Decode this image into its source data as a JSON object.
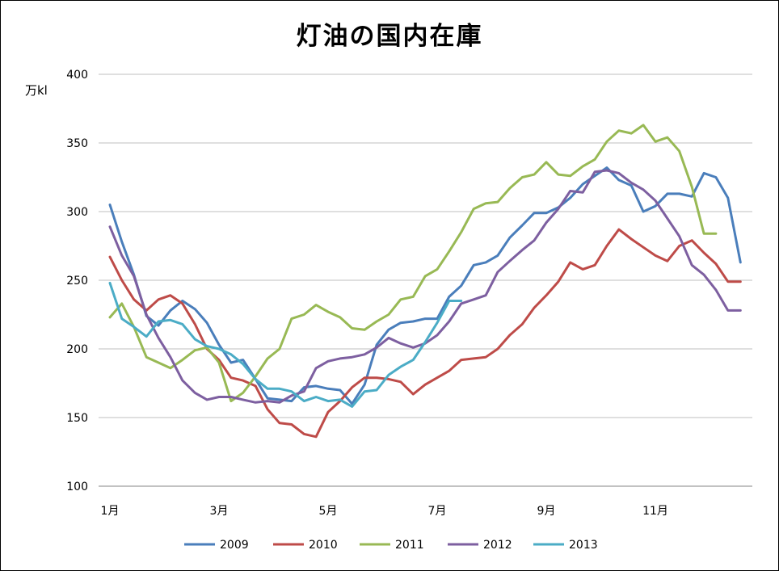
{
  "chart_data": {
    "type": "line",
    "title": "灯油の国内在庫",
    "ylabel": "万kl",
    "xlabel": "",
    "ylim": [
      100,
      400
    ],
    "yticks": [
      100,
      150,
      200,
      250,
      300,
      350,
      400
    ],
    "xlim": [
      1,
      12.67
    ],
    "xtick_values": [
      1,
      3,
      5,
      7,
      9,
      11
    ],
    "xtick_labels": [
      "1月",
      "3月",
      "5月",
      "7月",
      "9月",
      "11月"
    ],
    "grid": "horizontal",
    "legend_position": "bottom",
    "series": [
      {
        "name": "2009",
        "color": "#4A7EBB",
        "x": [
          1.0,
          1.22,
          1.44,
          1.67,
          1.89,
          2.11,
          2.33,
          2.56,
          2.78,
          3.0,
          3.22,
          3.44,
          3.67,
          3.89,
          4.11,
          4.33,
          4.56,
          4.78,
          5.0,
          5.22,
          5.44,
          5.67,
          5.89,
          6.11,
          6.33,
          6.56,
          6.78,
          7.0,
          7.22,
          7.44,
          7.67,
          7.89,
          8.11,
          8.33,
          8.56,
          8.78,
          9.0,
          9.22,
          9.44,
          9.67,
          9.89,
          10.11,
          10.33,
          10.56,
          10.78,
          11.0,
          11.22,
          11.44,
          11.67,
          11.89,
          12.11,
          12.33,
          12.56
        ],
        "values": [
          305,
          278,
          254,
          224,
          217,
          228,
          235,
          229,
          219,
          203,
          190,
          192,
          178,
          164,
          163,
          162,
          172,
          173,
          171,
          170,
          160,
          174,
          203,
          214,
          219,
          220,
          222,
          222,
          238,
          246,
          261,
          263,
          268,
          281,
          290,
          299,
          299,
          303,
          310,
          320,
          326,
          332,
          323,
          319,
          300,
          304,
          313,
          313,
          311,
          328,
          325,
          310,
          263
        ]
      },
      {
        "name": "2010",
        "color": "#BE4B48",
        "x": [
          1.0,
          1.22,
          1.44,
          1.67,
          1.89,
          2.11,
          2.33,
          2.56,
          2.78,
          3.0,
          3.22,
          3.44,
          3.67,
          3.89,
          4.11,
          4.33,
          4.56,
          4.78,
          5.0,
          5.22,
          5.44,
          5.67,
          5.89,
          6.11,
          6.33,
          6.56,
          6.78,
          7.0,
          7.22,
          7.44,
          7.67,
          7.89,
          8.11,
          8.33,
          8.56,
          8.78,
          9.0,
          9.22,
          9.44,
          9.67,
          9.89,
          10.11,
          10.33,
          10.56,
          10.78,
          11.0,
          11.22,
          11.44,
          11.67,
          11.89,
          12.11,
          12.33,
          12.56
        ],
        "values": [
          267,
          250,
          236,
          228,
          236,
          239,
          233,
          218,
          200,
          192,
          179,
          177,
          173,
          156,
          146,
          145,
          138,
          136,
          154,
          162,
          172,
          179,
          179,
          178,
          176,
          167,
          174,
          179,
          184,
          192,
          193,
          194,
          200,
          210,
          218,
          230,
          239,
          249,
          263,
          258,
          261,
          275,
          287,
          280,
          274,
          268,
          264,
          275,
          279,
          270,
          262,
          249,
          249
        ]
      },
      {
        "name": "2011",
        "color": "#98B954",
        "x": [
          1.0,
          1.22,
          1.44,
          1.67,
          1.89,
          2.11,
          2.33,
          2.56,
          2.78,
          3.0,
          3.22,
          3.44,
          3.67,
          3.89,
          4.11,
          4.33,
          4.56,
          4.78,
          5.0,
          5.22,
          5.44,
          5.67,
          5.89,
          6.11,
          6.33,
          6.56,
          6.78,
          7.0,
          7.22,
          7.44,
          7.67,
          7.89,
          8.11,
          8.33,
          8.56,
          8.78,
          9.0,
          9.22,
          9.44,
          9.67,
          9.89,
          10.11,
          10.33,
          10.56,
          10.78,
          11.0,
          11.22,
          11.44,
          11.67,
          11.89,
          12.11
        ],
        "values": [
          223,
          233,
          216,
          194,
          190,
          186,
          192,
          199,
          201,
          190,
          162,
          168,
          180,
          193,
          200,
          222,
          225,
          232,
          227,
          223,
          215,
          214,
          220,
          225,
          236,
          238,
          253,
          258,
          271,
          285,
          302,
          306,
          307,
          317,
          325,
          327,
          336,
          327,
          326,
          333,
          338,
          351,
          359,
          357,
          363,
          351,
          354,
          344,
          318,
          284,
          284
        ]
      },
      {
        "name": "2012",
        "color": "#7D5FA0",
        "x": [
          1.0,
          1.22,
          1.44,
          1.67,
          1.89,
          2.11,
          2.33,
          2.56,
          2.78,
          3.0,
          3.22,
          3.44,
          3.67,
          3.89,
          4.11,
          4.33,
          4.56,
          4.78,
          5.0,
          5.22,
          5.44,
          5.67,
          5.89,
          6.11,
          6.33,
          6.56,
          6.78,
          7.0,
          7.22,
          7.44,
          7.67,
          7.89,
          8.11,
          8.33,
          8.56,
          8.78,
          9.0,
          9.22,
          9.44,
          9.67,
          9.89,
          10.11,
          10.33,
          10.56,
          10.78,
          11.0,
          11.22,
          11.44,
          11.67,
          11.89,
          12.11,
          12.33,
          12.56
        ],
        "values": [
          289,
          268,
          253,
          225,
          208,
          194,
          177,
          168,
          163,
          165,
          165,
          163,
          161,
          162,
          161,
          166,
          169,
          186,
          191,
          193,
          194,
          196,
          201,
          208,
          204,
          201,
          204,
          210,
          220,
          233,
          236,
          239,
          256,
          264,
          272,
          279,
          292,
          302,
          315,
          314,
          329,
          330,
          328,
          321,
          316,
          308,
          295,
          282,
          261,
          254,
          243,
          228,
          228
        ]
      },
      {
        "name": "2013",
        "color": "#4BACC6",
        "x": [
          1.0,
          1.22,
          1.44,
          1.67,
          1.89,
          2.11,
          2.33,
          2.56,
          2.78,
          3.0,
          3.22,
          3.44,
          3.67,
          3.89,
          4.11,
          4.33,
          4.56,
          4.78,
          5.0,
          5.22,
          5.44,
          5.67,
          5.89,
          6.11,
          6.33,
          6.56,
          6.78,
          7.0,
          7.22,
          7.44
        ],
        "values": [
          248,
          222,
          216,
          209,
          220,
          221,
          218,
          207,
          202,
          200,
          196,
          189,
          178,
          171,
          171,
          169,
          162,
          165,
          162,
          163,
          158,
          169,
          170,
          181,
          187,
          192,
          205,
          219,
          235,
          235
        ]
      }
    ]
  }
}
